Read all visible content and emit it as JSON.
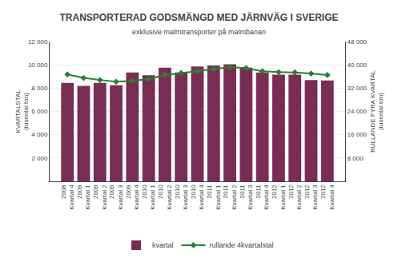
{
  "chart_data": {
    "type": "bar",
    "title": "TRANSPORTERAD GODSMÄNGD MED JÄRNVÄG I SVERIGE",
    "subtitle": "exklusive malmtransporter på malmbanan",
    "y_label": "KVARTALSTAL\n(tusental ton)",
    "y2_label": "RULLANDE FYRA KVARTAL\n(tusental ton)",
    "categories": [
      "2008\nKvartal 4",
      "2009\nKvartal 1",
      "2009\nKvartal 2",
      "2009\nKvartal 3",
      "2009\nKvartal 4",
      "2010\nKvartal 1",
      "2010\nKvartal 2",
      "2010\nKvartal 3",
      "2010\nKvartal 4",
      "2011\nKvartal 1",
      "2011\nKvartal 2",
      "2011\nKvartal 3",
      "2011\nKvartal 4",
      "2012\nKvartal 1",
      "2012\nKvartal 2",
      "2012\nKvartal 3",
      "2012\nKvartal 4"
    ],
    "series": [
      {
        "name": "kvartal",
        "type": "bar",
        "color": "#7a2d52",
        "values": [
          8450,
          8200,
          8450,
          8250,
          9350,
          9100,
          9750,
          9350,
          9850,
          9950,
          10050,
          9750,
          9350,
          9150,
          9150,
          8700,
          8650
        ]
      },
      {
        "name": "rullande 4kvartalstal",
        "type": "line",
        "axis": "y2",
        "color": "#2e7d32",
        "marker": "diamond",
        "values": [
          36700,
          35500,
          34800,
          34200,
          34500,
          35100,
          36500,
          37200,
          37800,
          38500,
          39200,
          38900,
          37800,
          37500,
          37400,
          37000,
          36500
        ]
      }
    ],
    "ylim": [
      0,
      12000
    ],
    "yticks": [
      {
        "value": 2000,
        "label": "2 000"
      },
      {
        "value": 4000,
        "label": "4 000"
      },
      {
        "value": 6000,
        "label": "6 000"
      },
      {
        "value": 8000,
        "label": "8 000"
      },
      {
        "value": 10000,
        "label": "10 000"
      },
      {
        "value": 12000,
        "label": "12 000"
      }
    ],
    "y2lim": [
      0,
      48000
    ],
    "y2ticks": [
      {
        "value": 8000,
        "label": "8 000"
      },
      {
        "value": 16000,
        "label": "16 000"
      },
      {
        "value": 24000,
        "label": "24 000"
      },
      {
        "value": 32000,
        "label": "32 000"
      },
      {
        "value": 40000,
        "label": "40 000"
      },
      {
        "value": 48000,
        "label": "48 000"
      }
    ],
    "grid": true,
    "legend": "bottom"
  }
}
